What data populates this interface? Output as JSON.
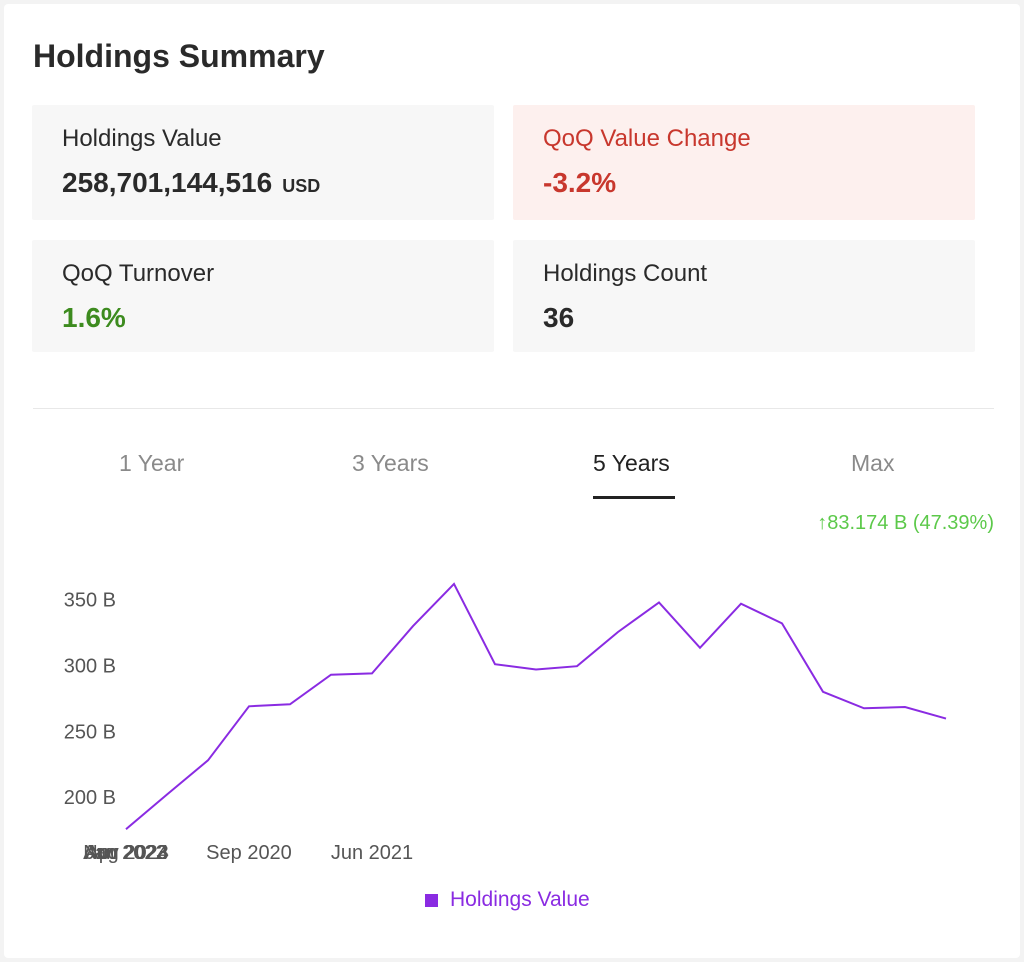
{
  "title": "Holdings Summary",
  "stats": {
    "holdings_value": {
      "label": "Holdings Value",
      "value": "258,701,144,516",
      "unit": "USD"
    },
    "qoq_value_change": {
      "label": "QoQ Value Change",
      "value": "-3.2%"
    },
    "qoq_turnover": {
      "label": "QoQ Turnover",
      "value": "1.6%"
    },
    "holdings_count": {
      "label": "Holdings Count",
      "value": "36"
    }
  },
  "tabs": [
    "1 Year",
    "3 Years",
    "5 Years",
    "Max"
  ],
  "active_tab": "5 Years",
  "change_text": "↑83.174 B (47.39%)",
  "colors": {
    "line": "#8a2be2",
    "positive": "#5cc94a",
    "negative": "#c8372d"
  },
  "chart_data": {
    "type": "line",
    "title": "",
    "xlabel": "",
    "ylabel": "",
    "x_tick_labels": [
      "Sep 2020",
      "Jun 2021",
      "Apr 2022",
      "Jan 2023",
      "Nov 2023",
      "Aug 2024"
    ],
    "y_tick_labels": [
      "350 B",
      "300 B",
      "250 B",
      "200 B"
    ],
    "y_ticks": [
      350,
      300,
      250,
      200
    ],
    "ylim": [
      175,
      365
    ],
    "series": [
      {
        "name": "Holdings Value",
        "x": [
          "Dec 2019",
          "Mar 2020",
          "Jun 2020",
          "Sep 2020",
          "Dec 2020",
          "Mar 2021",
          "Jun 2021",
          "Sep 2021",
          "Dec 2021",
          "Mar 2022",
          "Jun 2022",
          "Sep 2022",
          "Dec 2022",
          "Mar 2023",
          "Jun 2023",
          "Sep 2023",
          "Dec 2023",
          "Mar 2024",
          "Jun 2024",
          "Sep 2024",
          "Dec 2024"
        ],
        "values": [
          175.6,
          202,
          228,
          269,
          270.5,
          293,
          294,
          330,
          362,
          301,
          297,
          299.5,
          325.5,
          348,
          313.5,
          347,
          332,
          280,
          267.5,
          268.5,
          259.7
        ]
      }
    ],
    "legend": [
      "Holdings Value"
    ],
    "legend_position": "bottom",
    "grid": false
  }
}
